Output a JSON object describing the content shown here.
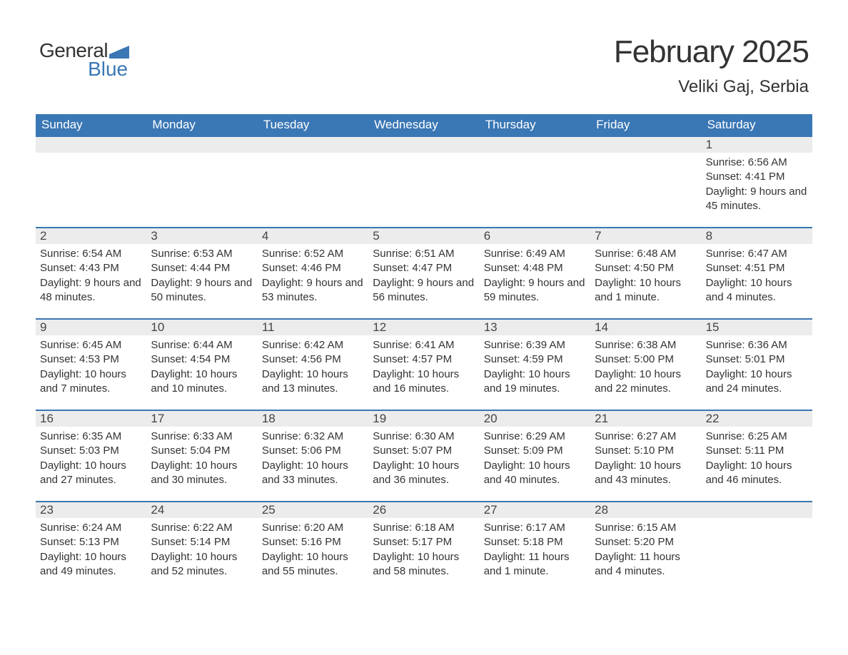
{
  "logo": {
    "text1": "General",
    "text2": "Blue",
    "primary_color": "#3a77b5",
    "glyph_color": "#3a77b5"
  },
  "header": {
    "title": "February 2025",
    "subtitle": "Veliki Gaj, Serbia"
  },
  "style": {
    "header_bg": "#3a77b5",
    "header_text": "#ffffff",
    "date_bg": "#ececec",
    "date_border_top": "#3a77b5",
    "body_text": "#333333",
    "page_bg": "#ffffff",
    "day_header_fontsize": 17,
    "date_fontsize": 17,
    "body_fontsize": 15,
    "title_fontsize": 44,
    "subtitle_fontsize": 24
  },
  "day_headers": [
    "Sunday",
    "Monday",
    "Tuesday",
    "Wednesday",
    "Thursday",
    "Friday",
    "Saturday"
  ],
  "leading_blanks": 6,
  "days": [
    {
      "num": "1",
      "sunrise": "Sunrise: 6:56 AM",
      "sunset": "Sunset: 4:41 PM",
      "daylight": "Daylight: 9 hours and 45 minutes."
    },
    {
      "num": "2",
      "sunrise": "Sunrise: 6:54 AM",
      "sunset": "Sunset: 4:43 PM",
      "daylight": "Daylight: 9 hours and 48 minutes."
    },
    {
      "num": "3",
      "sunrise": "Sunrise: 6:53 AM",
      "sunset": "Sunset: 4:44 PM",
      "daylight": "Daylight: 9 hours and 50 minutes."
    },
    {
      "num": "4",
      "sunrise": "Sunrise: 6:52 AM",
      "sunset": "Sunset: 4:46 PM",
      "daylight": "Daylight: 9 hours and 53 minutes."
    },
    {
      "num": "5",
      "sunrise": "Sunrise: 6:51 AM",
      "sunset": "Sunset: 4:47 PM",
      "daylight": "Daylight: 9 hours and 56 minutes."
    },
    {
      "num": "6",
      "sunrise": "Sunrise: 6:49 AM",
      "sunset": "Sunset: 4:48 PM",
      "daylight": "Daylight: 9 hours and 59 minutes."
    },
    {
      "num": "7",
      "sunrise": "Sunrise: 6:48 AM",
      "sunset": "Sunset: 4:50 PM",
      "daylight": "Daylight: 10 hours and 1 minute."
    },
    {
      "num": "8",
      "sunrise": "Sunrise: 6:47 AM",
      "sunset": "Sunset: 4:51 PM",
      "daylight": "Daylight: 10 hours and 4 minutes."
    },
    {
      "num": "9",
      "sunrise": "Sunrise: 6:45 AM",
      "sunset": "Sunset: 4:53 PM",
      "daylight": "Daylight: 10 hours and 7 minutes."
    },
    {
      "num": "10",
      "sunrise": "Sunrise: 6:44 AM",
      "sunset": "Sunset: 4:54 PM",
      "daylight": "Daylight: 10 hours and 10 minutes."
    },
    {
      "num": "11",
      "sunrise": "Sunrise: 6:42 AM",
      "sunset": "Sunset: 4:56 PM",
      "daylight": "Daylight: 10 hours and 13 minutes."
    },
    {
      "num": "12",
      "sunrise": "Sunrise: 6:41 AM",
      "sunset": "Sunset: 4:57 PM",
      "daylight": "Daylight: 10 hours and 16 minutes."
    },
    {
      "num": "13",
      "sunrise": "Sunrise: 6:39 AM",
      "sunset": "Sunset: 4:59 PM",
      "daylight": "Daylight: 10 hours and 19 minutes."
    },
    {
      "num": "14",
      "sunrise": "Sunrise: 6:38 AM",
      "sunset": "Sunset: 5:00 PM",
      "daylight": "Daylight: 10 hours and 22 minutes."
    },
    {
      "num": "15",
      "sunrise": "Sunrise: 6:36 AM",
      "sunset": "Sunset: 5:01 PM",
      "daylight": "Daylight: 10 hours and 24 minutes."
    },
    {
      "num": "16",
      "sunrise": "Sunrise: 6:35 AM",
      "sunset": "Sunset: 5:03 PM",
      "daylight": "Daylight: 10 hours and 27 minutes."
    },
    {
      "num": "17",
      "sunrise": "Sunrise: 6:33 AM",
      "sunset": "Sunset: 5:04 PM",
      "daylight": "Daylight: 10 hours and 30 minutes."
    },
    {
      "num": "18",
      "sunrise": "Sunrise: 6:32 AM",
      "sunset": "Sunset: 5:06 PM",
      "daylight": "Daylight: 10 hours and 33 minutes."
    },
    {
      "num": "19",
      "sunrise": "Sunrise: 6:30 AM",
      "sunset": "Sunset: 5:07 PM",
      "daylight": "Daylight: 10 hours and 36 minutes."
    },
    {
      "num": "20",
      "sunrise": "Sunrise: 6:29 AM",
      "sunset": "Sunset: 5:09 PM",
      "daylight": "Daylight: 10 hours and 40 minutes."
    },
    {
      "num": "21",
      "sunrise": "Sunrise: 6:27 AM",
      "sunset": "Sunset: 5:10 PM",
      "daylight": "Daylight: 10 hours and 43 minutes."
    },
    {
      "num": "22",
      "sunrise": "Sunrise: 6:25 AM",
      "sunset": "Sunset: 5:11 PM",
      "daylight": "Daylight: 10 hours and 46 minutes."
    },
    {
      "num": "23",
      "sunrise": "Sunrise: 6:24 AM",
      "sunset": "Sunset: 5:13 PM",
      "daylight": "Daylight: 10 hours and 49 minutes."
    },
    {
      "num": "24",
      "sunrise": "Sunrise: 6:22 AM",
      "sunset": "Sunset: 5:14 PM",
      "daylight": "Daylight: 10 hours and 52 minutes."
    },
    {
      "num": "25",
      "sunrise": "Sunrise: 6:20 AM",
      "sunset": "Sunset: 5:16 PM",
      "daylight": "Daylight: 10 hours and 55 minutes."
    },
    {
      "num": "26",
      "sunrise": "Sunrise: 6:18 AM",
      "sunset": "Sunset: 5:17 PM",
      "daylight": "Daylight: 10 hours and 58 minutes."
    },
    {
      "num": "27",
      "sunrise": "Sunrise: 6:17 AM",
      "sunset": "Sunset: 5:18 PM",
      "daylight": "Daylight: 11 hours and 1 minute."
    },
    {
      "num": "28",
      "sunrise": "Sunrise: 6:15 AM",
      "sunset": "Sunset: 5:20 PM",
      "daylight": "Daylight: 11 hours and 4 minutes."
    }
  ]
}
